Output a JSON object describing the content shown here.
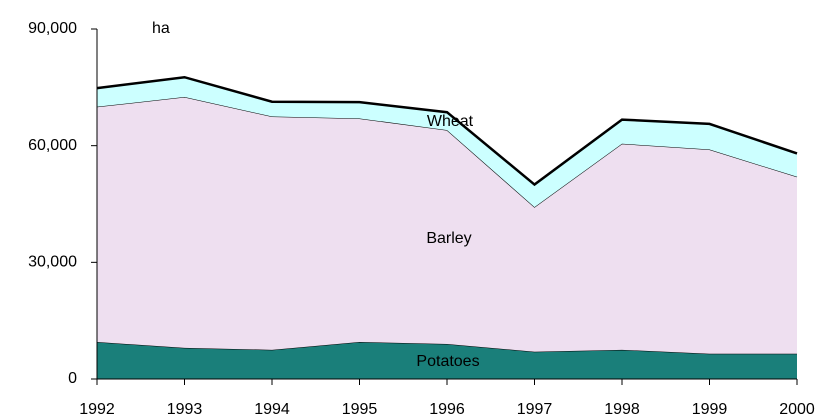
{
  "chart_data": {
    "type": "area",
    "stacked": true,
    "y_unit_label": "ha",
    "x": [
      1992,
      1993,
      1994,
      1995,
      1996,
      1997,
      1998,
      1999,
      2000
    ],
    "xlim": [
      1992,
      2000
    ],
    "xticks": [
      1992,
      1993,
      1994,
      1995,
      1996,
      1997,
      1998,
      1999,
      2000
    ],
    "ylim": [
      0,
      90000
    ],
    "yticks": [
      0,
      {
        "value": 30000,
        "label": "30,000"
      },
      {
        "value": 60000,
        "label": "60,000"
      },
      {
        "value": 90000,
        "label": "90,000"
      }
    ],
    "grid": false,
    "series": [
      {
        "name": "Potatoes",
        "color": "#1a7f7a",
        "values": [
          9500,
          8000,
          7500,
          9500,
          9000,
          7000,
          7500,
          6500,
          6500
        ]
      },
      {
        "name": "Barley",
        "color": "#eedff0",
        "values": [
          60500,
          64500,
          60000,
          57500,
          55000,
          37200,
          53000,
          52500,
          45500
        ]
      },
      {
        "name": "Wheat",
        "color": "#ccffff",
        "values": [
          4800,
          5100,
          3800,
          4200,
          4600,
          5800,
          6200,
          6600,
          6000
        ]
      }
    ]
  }
}
